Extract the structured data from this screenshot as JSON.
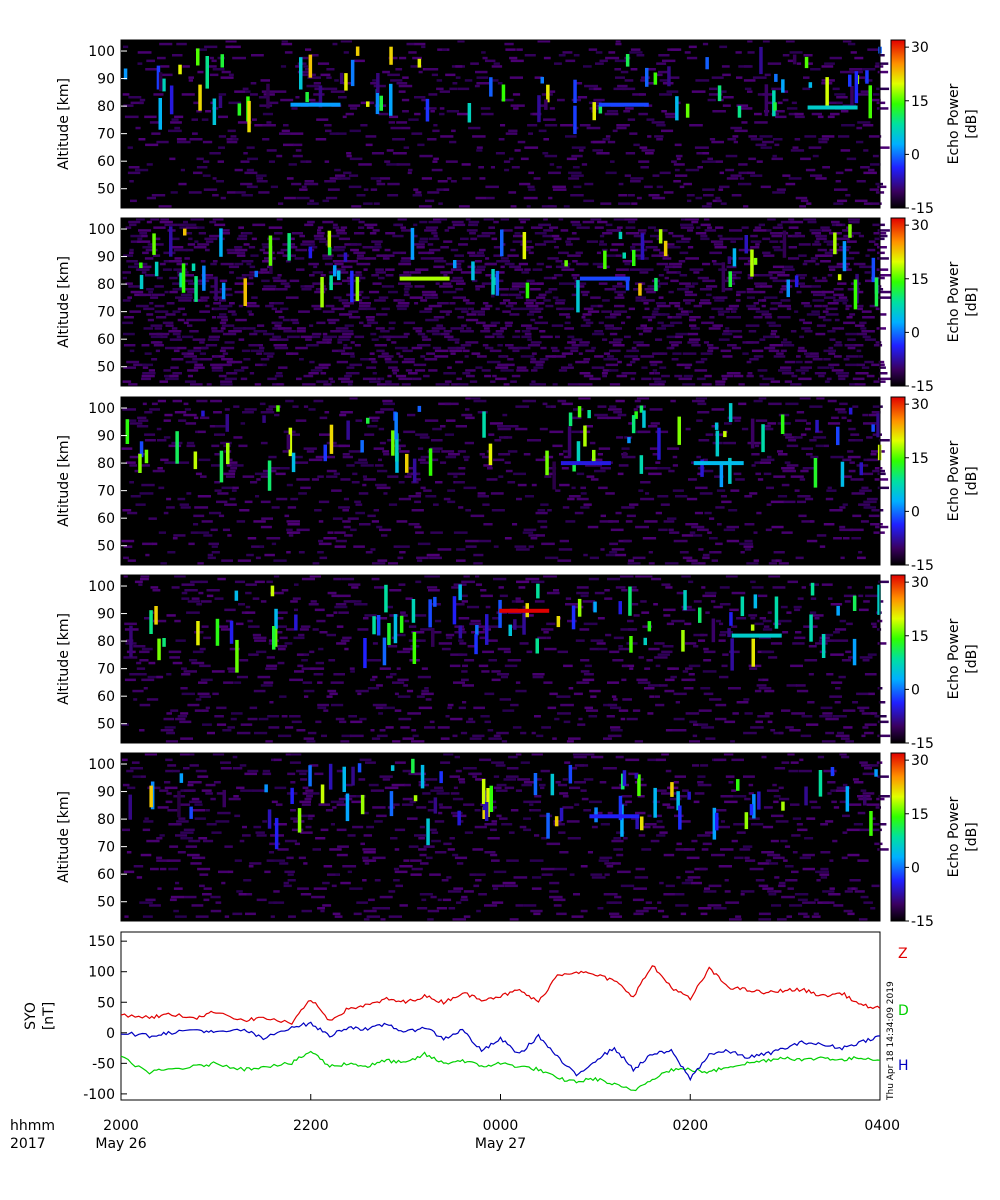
{
  "chart_data": [
    {
      "type": "heatmap",
      "panel": 1,
      "ylabel": "Altitude [km]",
      "yticks": [
        50,
        60,
        70,
        80,
        90,
        100
      ],
      "ylim": [
        43,
        104
      ],
      "colorbar": {
        "label_line1": "Echo Power",
        "label_line2": "[dB]",
        "ticks": [
          30,
          15,
          0,
          -15
        ],
        "range": [
          -15,
          32
        ]
      },
      "features": [
        {
          "x": 2.05,
          "y": 80.5,
          "value": 2
        },
        {
          "x": 5.3,
          "y": 80.5,
          "value": -2
        },
        {
          "x": 7.5,
          "y": 79.5,
          "value": 6
        }
      ]
    },
    {
      "type": "heatmap",
      "panel": 2,
      "ylabel": "Altitude [km]",
      "yticks": [
        50,
        60,
        70,
        80,
        90,
        100
      ],
      "ylim": [
        43,
        104
      ],
      "colorbar": {
        "label_line1": "Echo Power",
        "label_line2": "[dB]",
        "ticks": [
          30,
          15,
          0,
          -15
        ],
        "range": [
          -15,
          32
        ]
      },
      "features": [
        {
          "x": 3.2,
          "y": 82,
          "value": 18
        },
        {
          "x": 5.1,
          "y": 82,
          "value": -2
        }
      ]
    },
    {
      "type": "heatmap",
      "panel": 3,
      "ylabel": "Altitude [km]",
      "yticks": [
        50,
        60,
        70,
        80,
        90,
        100
      ],
      "ylim": [
        43,
        104
      ],
      "colorbar": {
        "label_line1": "Echo Power",
        "label_line2": "[dB]",
        "ticks": [
          30,
          15,
          0,
          -15
        ],
        "range": [
          -15,
          32
        ]
      },
      "features": [
        {
          "x": 4.9,
          "y": 80,
          "value": -5
        },
        {
          "x": 6.3,
          "y": 80,
          "value": 4
        }
      ]
    },
    {
      "type": "heatmap",
      "panel": 4,
      "ylabel": "Altitude [km]",
      "yticks": [
        50,
        60,
        70,
        80,
        90,
        100
      ],
      "ylim": [
        43,
        104
      ],
      "colorbar": {
        "label_line1": "Echo Power",
        "label_line2": "[dB]",
        "ticks": [
          30,
          15,
          0,
          -15
        ],
        "range": [
          -15,
          32
        ]
      },
      "features": [
        {
          "x": 4.25,
          "y": 91,
          "value": 32
        },
        {
          "x": 6.7,
          "y": 82,
          "value": 6
        }
      ]
    },
    {
      "type": "heatmap",
      "panel": 5,
      "ylabel": "Altitude [km]",
      "yticks": [
        50,
        60,
        70,
        80,
        90,
        100
      ],
      "ylim": [
        43,
        104
      ],
      "colorbar": {
        "label_line1": "Echo Power",
        "label_line2": "[dB]",
        "ticks": [
          30,
          15,
          0,
          -15
        ],
        "range": [
          -15,
          32
        ]
      },
      "features": [
        {
          "x": 5.2,
          "y": 81,
          "value": -4
        }
      ]
    },
    {
      "type": "line",
      "panel": 6,
      "ylabel_line1": "SYO",
      "ylabel_line2": "[nT]",
      "ylim": [
        -110,
        165
      ],
      "yticks": [
        150,
        100,
        50,
        0,
        -50,
        -100
      ],
      "x_unit": "hours since 2000 UT May 26",
      "series": [
        {
          "name": "Z",
          "color": "#e00000",
          "x": [
            0,
            0.3,
            0.5,
            0.8,
            1.0,
            1.3,
            1.5,
            1.8,
            2.0,
            2.2,
            2.4,
            2.6,
            2.8,
            3.0,
            3.2,
            3.4,
            3.6,
            3.8,
            4.0,
            4.2,
            4.4,
            4.6,
            4.8,
            5.0,
            5.2,
            5.4,
            5.6,
            5.8,
            6.0,
            6.2,
            6.4,
            6.6,
            6.8,
            7.0,
            7.2,
            7.4,
            7.6,
            7.8,
            8.0
          ],
          "y": [
            30,
            25,
            30,
            25,
            35,
            20,
            25,
            15,
            55,
            20,
            40,
            45,
            55,
            50,
            60,
            50,
            65,
            55,
            60,
            70,
            50,
            95,
            100,
            95,
            85,
            60,
            110,
            75,
            55,
            105,
            75,
            70,
            65,
            70,
            70,
            60,
            65,
            45,
            40
          ]
        },
        {
          "name": "D",
          "color": "#00d000",
          "x": [
            0,
            0.3,
            0.5,
            0.8,
            1.0,
            1.3,
            1.5,
            1.8,
            2.0,
            2.2,
            2.4,
            2.6,
            2.8,
            3.0,
            3.2,
            3.4,
            3.6,
            3.8,
            4.0,
            4.2,
            4.4,
            4.6,
            4.8,
            5.0,
            5.2,
            5.4,
            5.6,
            5.8,
            6.0,
            6.2,
            6.4,
            6.6,
            6.8,
            7.0,
            7.2,
            7.4,
            7.6,
            7.8,
            8.0
          ],
          "y": [
            -40,
            -65,
            -60,
            -55,
            -50,
            -60,
            -55,
            -50,
            -30,
            -55,
            -50,
            -55,
            -45,
            -50,
            -35,
            -50,
            -45,
            -55,
            -50,
            -55,
            -60,
            -75,
            -80,
            -75,
            -85,
            -95,
            -75,
            -60,
            -60,
            -65,
            -55,
            -50,
            -45,
            -40,
            -45,
            -40,
            -45,
            -40,
            -45
          ]
        },
        {
          "name": "H",
          "color": "#0000c0",
          "x": [
            0,
            0.3,
            0.5,
            0.8,
            1.0,
            1.3,
            1.5,
            1.8,
            2.0,
            2.2,
            2.4,
            2.6,
            2.8,
            3.0,
            3.2,
            3.4,
            3.6,
            3.8,
            4.0,
            4.2,
            4.4,
            4.6,
            4.8,
            5.0,
            5.2,
            5.4,
            5.6,
            5.8,
            6.0,
            6.2,
            6.4,
            6.6,
            6.8,
            7.0,
            7.2,
            7.4,
            7.6,
            7.8,
            8.0
          ],
          "y": [
            0,
            -5,
            0,
            5,
            0,
            5,
            -10,
            10,
            15,
            -5,
            10,
            5,
            15,
            0,
            10,
            -10,
            5,
            -30,
            -10,
            -35,
            -5,
            -40,
            -70,
            -45,
            -25,
            -60,
            -35,
            -30,
            -75,
            -35,
            -30,
            -40,
            -35,
            -25,
            -15,
            -20,
            -25,
            -15,
            -5
          ]
        }
      ]
    }
  ],
  "time_axis": {
    "row_label_line1": "hhmm",
    "row_label_line2": "2017",
    "hours_span": 8,
    "ticks": [
      {
        "hour": 0,
        "label": "2000",
        "date": "May 26"
      },
      {
        "hour": 2,
        "label": "2200",
        "date": ""
      },
      {
        "hour": 4,
        "label": "0000",
        "date": "May 27"
      },
      {
        "hour": 6,
        "label": "0200",
        "date": ""
      },
      {
        "hour": 8,
        "label": "0400",
        "date": ""
      }
    ]
  },
  "timestamp": "Thu Apr 18 14:34:09 2019"
}
